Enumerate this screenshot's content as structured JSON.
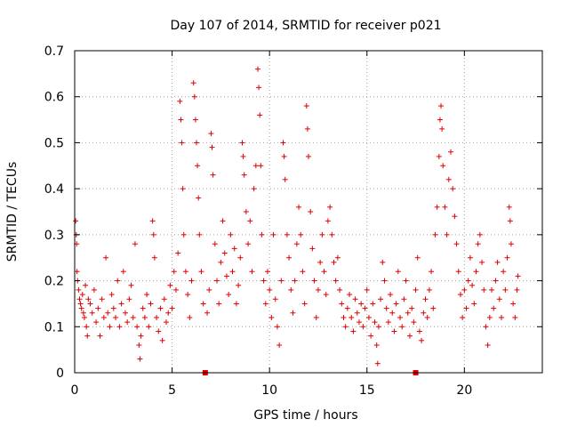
{
  "chart_data": {
    "type": "scatter",
    "title": "Day 107 of 2014, SRMTID for receiver p021",
    "xlabel": "GPS time / hours",
    "ylabel": "SRMTID / TECUs",
    "xlim": [
      0,
      24
    ],
    "ylim": [
      0,
      0.7
    ],
    "xticks": [
      0,
      5,
      10,
      15,
      20
    ],
    "xtick_labels": [
      "0",
      "5",
      "10",
      "15",
      "20"
    ],
    "yticks": [
      0,
      0.1,
      0.2,
      0.3,
      0.4,
      0.5,
      0.6,
      0.7
    ],
    "ytick_labels": [
      "0",
      "0.1",
      "0.2",
      "0.3",
      "0.4",
      "0.5",
      "0.6",
      "0.7"
    ],
    "grid": true,
    "marker": "+",
    "color": "#e00000",
    "series": [
      {
        "name": "SRMTID",
        "points": [
          [
            0.05,
            0.33
          ],
          [
            0.08,
            0.3
          ],
          [
            0.1,
            0.28
          ],
          [
            0.12,
            0.22
          ],
          [
            0.15,
            0.2
          ],
          [
            0.2,
            0.18
          ],
          [
            0.25,
            0.16
          ],
          [
            0.3,
            0.15
          ],
          [
            0.35,
            0.14
          ],
          [
            0.4,
            0.17
          ],
          [
            0.45,
            0.13
          ],
          [
            0.5,
            0.12
          ],
          [
            0.55,
            0.19
          ],
          [
            0.6,
            0.1
          ],
          [
            0.65,
            0.08
          ],
          [
            0.7,
            0.16
          ],
          [
            0.8,
            0.15
          ],
          [
            0.9,
            0.13
          ],
          [
            1.0,
            0.18
          ],
          [
            1.1,
            0.11
          ],
          [
            1.2,
            0.14
          ],
          [
            1.3,
            0.08
          ],
          [
            1.4,
            0.16
          ],
          [
            1.5,
            0.12
          ],
          [
            1.6,
            0.25
          ],
          [
            1.7,
            0.13
          ],
          [
            1.8,
            0.1
          ],
          [
            1.9,
            0.17
          ],
          [
            2.0,
            0.14
          ],
          [
            2.1,
            0.12
          ],
          [
            2.2,
            0.2
          ],
          [
            2.3,
            0.1
          ],
          [
            2.4,
            0.15
          ],
          [
            2.5,
            0.22
          ],
          [
            2.6,
            0.13
          ],
          [
            2.7,
            0.11
          ],
          [
            2.8,
            0.16
          ],
          [
            2.9,
            0.19
          ],
          [
            3.0,
            0.12
          ],
          [
            3.1,
            0.28
          ],
          [
            3.2,
            0.1
          ],
          [
            3.3,
            0.06
          ],
          [
            3.35,
            0.03
          ],
          [
            3.4,
            0.08
          ],
          [
            3.5,
            0.14
          ],
          [
            3.6,
            0.12
          ],
          [
            3.7,
            0.17
          ],
          [
            3.8,
            0.1
          ],
          [
            3.9,
            0.15
          ],
          [
            4.0,
            0.33
          ],
          [
            4.05,
            0.3
          ],
          [
            4.1,
            0.25
          ],
          [
            4.2,
            0.12
          ],
          [
            4.3,
            0.09
          ],
          [
            4.4,
            0.14
          ],
          [
            4.5,
            0.07
          ],
          [
            4.6,
            0.16
          ],
          [
            4.7,
            0.11
          ],
          [
            4.8,
            0.13
          ],
          [
            4.9,
            0.19
          ],
          [
            5.0,
            0.14
          ],
          [
            5.1,
            0.22
          ],
          [
            5.2,
            0.18
          ],
          [
            5.3,
            0.26
          ],
          [
            5.4,
            0.59
          ],
          [
            5.45,
            0.55
          ],
          [
            5.5,
            0.5
          ],
          [
            5.55,
            0.4
          ],
          [
            5.6,
            0.3
          ],
          [
            5.7,
            0.22
          ],
          [
            5.8,
            0.17
          ],
          [
            5.9,
            0.12
          ],
          [
            6.0,
            0.2
          ],
          [
            6.1,
            0.63
          ],
          [
            6.15,
            0.6
          ],
          [
            6.2,
            0.55
          ],
          [
            6.25,
            0.5
          ],
          [
            6.3,
            0.45
          ],
          [
            6.35,
            0.38
          ],
          [
            6.4,
            0.3
          ],
          [
            6.5,
            0.22
          ],
          [
            6.6,
            0.15
          ],
          [
            6.8,
            0.13
          ],
          [
            6.9,
            0.18
          ],
          [
            7.0,
            0.52
          ],
          [
            7.05,
            0.49
          ],
          [
            7.1,
            0.43
          ],
          [
            7.2,
            0.28
          ],
          [
            7.3,
            0.2
          ],
          [
            7.4,
            0.15
          ],
          [
            7.5,
            0.24
          ],
          [
            7.6,
            0.33
          ],
          [
            7.7,
            0.26
          ],
          [
            7.8,
            0.21
          ],
          [
            7.9,
            0.17
          ],
          [
            8.0,
            0.3
          ],
          [
            8.1,
            0.22
          ],
          [
            8.2,
            0.27
          ],
          [
            8.3,
            0.15
          ],
          [
            8.4,
            0.19
          ],
          [
            8.5,
            0.25
          ],
          [
            8.6,
            0.5
          ],
          [
            8.65,
            0.47
          ],
          [
            8.7,
            0.43
          ],
          [
            8.8,
            0.35
          ],
          [
            8.9,
            0.28
          ],
          [
            9.0,
            0.33
          ],
          [
            9.1,
            0.22
          ],
          [
            9.2,
            0.4
          ],
          [
            9.3,
            0.45
          ],
          [
            9.4,
            0.66
          ],
          [
            9.45,
            0.62
          ],
          [
            9.5,
            0.56
          ],
          [
            9.55,
            0.45
          ],
          [
            9.6,
            0.3
          ],
          [
            9.7,
            0.2
          ],
          [
            9.8,
            0.15
          ],
          [
            9.9,
            0.22
          ],
          [
            10.0,
            0.18
          ],
          [
            10.1,
            0.12
          ],
          [
            10.2,
            0.3
          ],
          [
            10.3,
            0.16
          ],
          [
            10.4,
            0.1
          ],
          [
            10.5,
            0.06
          ],
          [
            10.6,
            0.2
          ],
          [
            10.7,
            0.5
          ],
          [
            10.75,
            0.47
          ],
          [
            10.8,
            0.42
          ],
          [
            10.9,
            0.3
          ],
          [
            11.0,
            0.25
          ],
          [
            11.1,
            0.18
          ],
          [
            11.2,
            0.13
          ],
          [
            11.3,
            0.2
          ],
          [
            11.4,
            0.28
          ],
          [
            11.5,
            0.36
          ],
          [
            11.6,
            0.3
          ],
          [
            11.7,
            0.22
          ],
          [
            11.8,
            0.15
          ],
          [
            11.9,
            0.58
          ],
          [
            11.95,
            0.53
          ],
          [
            12.0,
            0.47
          ],
          [
            12.1,
            0.35
          ],
          [
            12.2,
            0.27
          ],
          [
            12.3,
            0.2
          ],
          [
            12.4,
            0.12
          ],
          [
            12.5,
            0.18
          ],
          [
            12.6,
            0.24
          ],
          [
            12.7,
            0.3
          ],
          [
            12.8,
            0.22
          ],
          [
            12.9,
            0.17
          ],
          [
            13.0,
            0.33
          ],
          [
            13.1,
            0.36
          ],
          [
            13.2,
            0.3
          ],
          [
            13.3,
            0.24
          ],
          [
            13.4,
            0.2
          ],
          [
            13.5,
            0.25
          ],
          [
            13.6,
            0.18
          ],
          [
            13.7,
            0.15
          ],
          [
            13.8,
            0.12
          ],
          [
            13.9,
            0.1
          ],
          [
            14.0,
            0.14
          ],
          [
            14.1,
            0.17
          ],
          [
            14.2,
            0.12
          ],
          [
            14.3,
            0.09
          ],
          [
            14.4,
            0.16
          ],
          [
            14.5,
            0.13
          ],
          [
            14.6,
            0.11
          ],
          [
            14.7,
            0.15
          ],
          [
            14.8,
            0.1
          ],
          [
            14.9,
            0.14
          ],
          [
            15.0,
            0.18
          ],
          [
            15.1,
            0.12
          ],
          [
            15.2,
            0.08
          ],
          [
            15.3,
            0.15
          ],
          [
            15.4,
            0.11
          ],
          [
            15.5,
            0.06
          ],
          [
            15.55,
            0.02
          ],
          [
            15.6,
            0.1
          ],
          [
            15.7,
            0.16
          ],
          [
            15.8,
            0.24
          ],
          [
            15.9,
            0.2
          ],
          [
            16.0,
            0.14
          ],
          [
            16.1,
            0.11
          ],
          [
            16.2,
            0.17
          ],
          [
            16.3,
            0.13
          ],
          [
            16.4,
            0.09
          ],
          [
            16.5,
            0.15
          ],
          [
            16.6,
            0.22
          ],
          [
            16.7,
            0.12
          ],
          [
            16.8,
            0.1
          ],
          [
            16.9,
            0.16
          ],
          [
            17.0,
            0.2
          ],
          [
            17.1,
            0.13
          ],
          [
            17.2,
            0.08
          ],
          [
            17.3,
            0.14
          ],
          [
            17.4,
            0.11
          ],
          [
            17.5,
            0.18
          ],
          [
            17.6,
            0.25
          ],
          [
            17.7,
            0.09
          ],
          [
            17.8,
            0.07
          ],
          [
            17.9,
            0.13
          ],
          [
            18.0,
            0.16
          ],
          [
            18.1,
            0.12
          ],
          [
            18.2,
            0.18
          ],
          [
            18.3,
            0.22
          ],
          [
            18.4,
            0.14
          ],
          [
            18.5,
            0.3
          ],
          [
            18.6,
            0.36
          ],
          [
            18.7,
            0.47
          ],
          [
            18.75,
            0.55
          ],
          [
            18.8,
            0.58
          ],
          [
            18.85,
            0.53
          ],
          [
            18.9,
            0.45
          ],
          [
            19.0,
            0.36
          ],
          [
            19.1,
            0.3
          ],
          [
            19.2,
            0.42
          ],
          [
            19.3,
            0.48
          ],
          [
            19.4,
            0.4
          ],
          [
            19.5,
            0.34
          ],
          [
            19.6,
            0.28
          ],
          [
            19.7,
            0.22
          ],
          [
            19.8,
            0.17
          ],
          [
            19.9,
            0.12
          ],
          [
            20.0,
            0.18
          ],
          [
            20.1,
            0.14
          ],
          [
            20.2,
            0.2
          ],
          [
            20.3,
            0.25
          ],
          [
            20.4,
            0.19
          ],
          [
            20.5,
            0.15
          ],
          [
            20.6,
            0.22
          ],
          [
            20.7,
            0.28
          ],
          [
            20.8,
            0.3
          ],
          [
            20.9,
            0.24
          ],
          [
            21.0,
            0.18
          ],
          [
            21.1,
            0.1
          ],
          [
            21.2,
            0.06
          ],
          [
            21.3,
            0.12
          ],
          [
            21.4,
            0.18
          ],
          [
            21.5,
            0.14
          ],
          [
            21.6,
            0.2
          ],
          [
            21.7,
            0.24
          ],
          [
            21.8,
            0.16
          ],
          [
            21.9,
            0.12
          ],
          [
            22.0,
            0.22
          ],
          [
            22.1,
            0.18
          ],
          [
            22.2,
            0.25
          ],
          [
            22.3,
            0.36
          ],
          [
            22.35,
            0.33
          ],
          [
            22.4,
            0.28
          ],
          [
            22.5,
            0.15
          ],
          [
            22.6,
            0.12
          ],
          [
            22.7,
            0.18
          ],
          [
            22.75,
            0.21
          ]
        ]
      }
    ],
    "gap_markers": [
      6.7,
      17.5
    ]
  }
}
